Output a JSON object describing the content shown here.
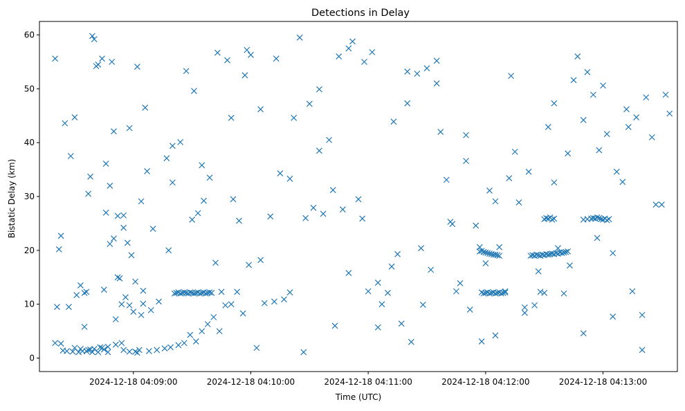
{
  "chart_data": {
    "type": "scatter",
    "title": "Detections in Delay",
    "xlabel": "Time (UTC)",
    "ylabel": "Bistatic Delay (km)",
    "x_unit": "UTC time",
    "xlim": [
      "2024-12-18 04:08:12",
      "2024-12-18 04:13:38"
    ],
    "ylim": [
      -2.5,
      62.5
    ],
    "xticks": [
      "2024-12-18 04:09:00",
      "2024-12-18 04:10:00",
      "2024-12-18 04:11:00",
      "2024-12-18 04:12:00",
      "2024-12-18 04:13:00"
    ],
    "yticks": [
      0,
      10,
      20,
      30,
      40,
      50,
      60
    ],
    "grid": false,
    "legend": "none",
    "marker": "x",
    "color": "#1f77b4",
    "series": [
      {
        "x": [
          "04:08:20",
          "04:08:21",
          "04:08:22",
          "04:08:23",
          "04:08:25",
          "04:08:28",
          "04:08:31",
          "04:08:33",
          "04:08:35",
          "04:08:36",
          "04:08:37",
          "04:08:38",
          "04:08:39",
          "04:08:40",
          "04:08:41",
          "04:08:42",
          "04:08:43",
          "04:08:44",
          "04:08:45",
          "04:08:46",
          "04:08:47",
          "04:08:48",
          "04:08:49",
          "04:08:50",
          "04:08:51",
          "04:08:52",
          "04:08:53",
          "04:08:54",
          "04:08:55",
          "04:08:56",
          "04:08:57",
          "04:08:58",
          "04:08:59",
          "04:09:00",
          "04:09:01",
          "04:09:02",
          "04:09:03",
          "04:09:04",
          "04:09:05",
          "04:09:06",
          "04:08:20",
          "04:08:23",
          "04:08:27",
          "04:08:30",
          "04:08:33",
          "04:08:36",
          "04:08:39",
          "04:08:42",
          "04:08:45",
          "04:08:48",
          "04:08:52",
          "04:08:55",
          "04:08:58",
          "04:09:01",
          "04:09:04",
          "04:09:07",
          "04:09:10",
          "04:09:13",
          "04:09:17",
          "04:09:20",
          "04:09:24",
          "04:09:27",
          "04:09:30",
          "04:09:33",
          "04:09:36",
          "04:09:39",
          "04:09:42",
          "04:09:45",
          "04:09:48",
          "04:09:51",
          "04:09:54",
          "04:09:57",
          "04:10:00",
          "04:10:05",
          "04:10:10",
          "04:10:15",
          "04:10:20",
          "04:10:25",
          "04:10:30",
          "04:10:35",
          "04:10:40",
          "04:10:45",
          "04:10:50",
          "04:10:55",
          "04:11:00",
          "04:11:05",
          "04:11:10",
          "04:11:15",
          "04:11:20",
          "04:11:25",
          "04:11:30",
          "04:11:35",
          "04:11:40",
          "04:11:45",
          "04:11:50",
          "04:11:55",
          "04:12:00",
          "04:12:05",
          "04:12:10",
          "04:12:15",
          "04:12:20",
          "04:12:25",
          "04:12:30",
          "04:12:35",
          "04:12:40",
          "04:12:45",
          "04:12:50",
          "04:12:55",
          "04:13:00",
          "04:13:05",
          "04:13:10",
          "04:13:15",
          "04:13:20",
          "04:13:25",
          "04:13:30",
          "04:13:32",
          "04:09:21",
          "04:09:22",
          "04:09:23",
          "04:09:24",
          "04:09:25",
          "04:09:26",
          "04:09:27",
          "04:09:28",
          "04:09:29",
          "04:09:30",
          "04:09:31",
          "04:09:32",
          "04:09:33",
          "04:09:34",
          "04:09:35",
          "04:09:36",
          "04:09:37",
          "04:09:38",
          "04:09:39",
          "04:09:40",
          "04:11:58",
          "04:11:59",
          "04:12:00",
          "04:12:01",
          "04:12:02",
          "04:12:03",
          "04:12:04",
          "04:12:05",
          "04:12:06",
          "04:12:07",
          "04:12:08",
          "04:12:09",
          "04:12:10",
          "04:12:23",
          "04:12:24",
          "04:12:25",
          "04:12:26",
          "04:12:27",
          "04:12:28",
          "04:12:29",
          "04:12:30",
          "04:12:31",
          "04:12:32",
          "04:12:33",
          "04:12:34",
          "04:12:35",
          "04:12:36",
          "04:12:37",
          "04:12:38",
          "04:12:39",
          "04:12:40",
          "04:12:41",
          "04:12:42",
          "04:11:57",
          "04:11:58",
          "04:11:59",
          "04:12:00",
          "04:12:01",
          "04:12:02",
          "04:12:03",
          "04:12:04",
          "04:12:05",
          "04:12:06",
          "04:12:07",
          "04:12:50",
          "04:12:52",
          "04:12:54",
          "04:12:55",
          "04:12:56",
          "04:12:57",
          "04:12:58",
          "04:12:59",
          "04:13:00",
          "04:13:01",
          "04:13:02",
          "04:13:03",
          "04:12:30",
          "04:12:31",
          "04:12:32",
          "04:12:33",
          "04:12:34",
          "04:12:35",
          "04:08:24",
          "04:08:26",
          "04:08:29",
          "04:08:32",
          "04:08:34",
          "04:08:37",
          "04:08:40",
          "04:08:44",
          "04:08:47",
          "04:08:51",
          "04:08:54",
          "04:08:58",
          "04:09:02",
          "04:09:08",
          "04:09:12",
          "04:09:16",
          "04:09:19",
          "04:09:23",
          "04:09:26",
          "04:09:29",
          "04:09:32",
          "04:09:35",
          "04:09:38",
          "04:09:41",
          "04:09:44",
          "04:09:47",
          "04:09:50",
          "04:09:53",
          "04:09:56",
          "04:09:59",
          "04:10:03",
          "04:10:07",
          "04:10:12",
          "04:10:17",
          "04:10:22",
          "04:10:27",
          "04:10:32",
          "04:10:37",
          "04:10:42",
          "04:10:47",
          "04:10:52",
          "04:10:57",
          "04:11:02",
          "04:11:07",
          "04:11:12",
          "04:11:17",
          "04:11:22",
          "04:11:27",
          "04:11:32",
          "04:11:37",
          "04:11:42",
          "04:11:47",
          "04:11:52",
          "04:11:57",
          "04:12:02",
          "04:12:07",
          "04:12:12",
          "04:12:17",
          "04:12:22",
          "04:12:27",
          "04:12:32",
          "04:12:37",
          "04:12:42",
          "04:12:47",
          "04:12:52",
          "04:12:57",
          "04:13:02",
          "04:13:07",
          "04:13:12",
          "04:13:17",
          "04:13:22",
          "04:13:27",
          "04:13:34",
          "04:08:30",
          "04:08:38",
          "04:08:46",
          "04:08:55",
          "04:09:09",
          "04:09:18",
          "04:09:31",
          "04:09:43",
          "04:09:58",
          "04:10:13",
          "04:10:28",
          "04:10:43",
          "04:10:58",
          "04:11:13",
          "04:11:28",
          "04:11:43",
          "04:11:58",
          "04:12:13",
          "04:12:28",
          "04:12:43",
          "04:12:58",
          "04:13:13",
          "04:08:35",
          "04:08:50",
          "04:09:05",
          "04:09:20",
          "04:09:35",
          "04:09:50",
          "04:10:05",
          "04:10:20",
          "04:10:35",
          "04:10:50",
          "04:11:05",
          "04:11:20",
          "04:11:35",
          "04:11:50",
          "04:12:05",
          "04:12:20",
          "04:12:35",
          "04:12:50",
          "04:13:05",
          "04:13:20"
        ],
        "y": [
          2.8,
          9.5,
          20.2,
          22.7,
          43.6,
          37.5,
          11.7,
          13.5,
          5.8,
          12.3,
          30.5,
          1.6,
          59.8,
          59.2,
          54.2,
          54.5,
          2.0,
          55.6,
          12.7,
          36.1,
          1.1,
          21.2,
          55.0,
          42.1,
          7.2,
          15.0,
          14.8,
          10.0,
          1.5,
          11.3,
          21.4,
          9.8,
          19.1,
          8.6,
          1.2,
          54.1,
          1.5,
          8.0,
          10.1,
          46.5,
          55.6,
          2.7,
          9.5,
          1.9,
          1.7,
          1.3,
          1.1,
          1.1,
          1.6,
          32.0,
          26.4,
          24.2,
          42.7,
          14.2,
          29.1,
          34.7,
          24.0,
          10.5,
          37.1,
          39.4,
          40.1,
          53.3,
          25.7,
          26.9,
          29.2,
          33.5,
          17.7,
          12.3,
          55.3,
          29.5,
          25.5,
          52.5,
          56.3,
          18.2,
          26.3,
          34.3,
          12.2,
          59.5,
          47.2,
          49.9,
          40.5,
          56.0,
          57.5,
          29.5,
          12.4,
          14.0,
          12.1,
          19.3,
          53.2,
          52.8,
          53.8,
          55.2,
          33.1,
          12.4,
          41.4,
          24.6,
          17.6,
          4.2,
          12.4,
          38.3,
          9.4,
          9.8,
          12.1,
          32.6,
          12.0,
          51.6,
          4.6,
          48.9,
          50.6,
          7.7,
          32.7,
          12.4,
          1.5,
          41.0,
          28.5,
          48.9,
          12.0,
          12.1,
          12.2,
          12.0,
          12.1,
          12.2,
          12.1,
          12.0,
          12.2,
          12.1,
          12.0,
          12.1,
          12.2,
          12.0,
          12.1,
          12.2,
          12.0,
          12.1,
          12.2,
          12.1,
          12.2,
          12.0,
          12.1,
          12.2,
          12.0,
          12.1,
          12.2,
          12.0,
          12.1,
          12.2,
          12.0,
          12.1,
          12.2,
          19.0,
          19.1,
          19.0,
          19.2,
          19.1,
          19.0,
          19.2,
          19.1,
          19.3,
          19.2,
          19.3,
          19.4,
          19.3,
          19.5,
          19.4,
          19.6,
          19.5,
          19.6,
          19.7,
          19.8,
          19.8,
          19.9,
          19.7,
          19.6,
          19.5,
          19.4,
          19.3,
          19.2,
          19.2,
          19.1,
          19.0,
          25.7,
          25.8,
          25.9,
          26.0,
          25.9,
          26.1,
          26.0,
          25.8,
          25.7,
          25.9,
          25.6,
          25.8,
          25.8,
          26.0,
          25.9,
          26.1,
          25.7,
          25.9,
          1.4,
          1.3,
          1.2,
          1.1,
          1.3,
          1.5,
          1.7,
          1.9,
          2.1,
          2.5,
          2.8,
          1.2,
          1.0,
          1.3,
          1.5,
          1.8,
          2.0,
          2.4,
          2.8,
          4.3,
          3.1,
          5.0,
          6.3,
          7.6,
          5.0,
          9.8,
          10.0,
          12.3,
          8.3,
          17.3,
          1.9,
          10.2,
          10.5,
          10.9,
          44.6,
          1.1,
          27.9,
          26.8,
          31.2,
          27.6,
          58.8,
          25.9,
          56.8,
          10.0,
          17.0,
          6.4,
          3.0,
          20.4,
          16.4,
          42.0,
          25.3,
          13.9,
          9.0,
          20.6,
          31.1,
          20.6,
          33.4,
          28.9,
          34.6,
          16.1,
          42.9,
          20.4,
          38.0,
          56.0,
          53.1,
          22.3,
          41.6,
          34.6,
          46.2,
          44.7,
          48.4,
          28.5,
          45.4,
          44.7,
          33.7,
          27.0,
          26.5,
          8.9,
          20.0,
          49.6,
          56.7,
          57.2,
          55.6,
          26.0,
          6.0,
          55.0,
          43.9,
          9.9,
          24.9,
          3.1,
          52.4,
          12.3,
          17.2,
          38.6,
          42.9,
          12.1,
          22.2,
          12.5,
          32.6,
          35.8,
          44.6,
          46.2,
          33.3,
          38.5,
          15.8,
          5.7,
          47.3,
          51.0,
          36.6,
          29.1,
          8.4,
          47.3,
          44.2,
          19.5,
          8.0
        ]
      }
    ]
  }
}
